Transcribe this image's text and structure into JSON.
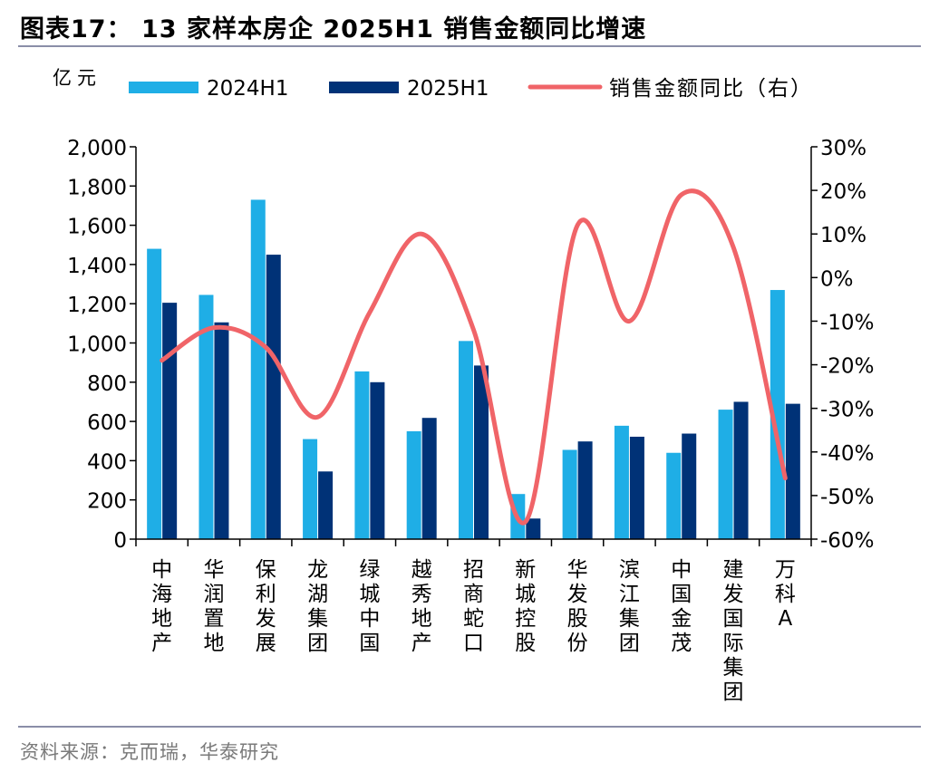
{
  "title": "图表17： 13 家样本房企 2025H1 销售金额同比增速",
  "source": "资料来源：克而瑞，华泰研究",
  "colors": {
    "series_2024": "#1faee6",
    "series_2025": "#003277",
    "line": "#f06468",
    "axis": "#000000",
    "rule": "#8a8ea8"
  },
  "chart_data": {
    "type": "bar",
    "ylabel": "亿元",
    "ylim": [
      0,
      2000
    ],
    "yticks": [
      "0",
      "200",
      "400",
      "600",
      "800",
      "1,000",
      "1,200",
      "1,400",
      "1,600",
      "1,800",
      "2,000"
    ],
    "y2lim": [
      -60,
      30
    ],
    "y2ticks": [
      "-60%",
      "-50%",
      "-40%",
      "-30%",
      "-20%",
      "-10%",
      "0%",
      "10%",
      "20%",
      "30%"
    ],
    "grid": false,
    "legend_position": "top",
    "categories": [
      "中海地产",
      "华润置地",
      "保利发展",
      "龙湖集团",
      "绿城中国",
      "越秀地产",
      "招商蛇口",
      "新城控股",
      "华发股份",
      "滨江集团",
      "中国金茂",
      "建发国际集团",
      "万科A"
    ],
    "series": [
      {
        "name": "2024H1",
        "type": "bar",
        "axis": "left",
        "values": [
          1480,
          1245,
          1730,
          510,
          855,
          550,
          1010,
          230,
          455,
          578,
          440,
          660,
          1270
        ]
      },
      {
        "name": "2025H1",
        "type": "bar",
        "axis": "left",
        "values": [
          1205,
          1105,
          1450,
          345,
          800,
          618,
          885,
          105,
          498,
          522,
          538,
          700,
          690
        ]
      },
      {
        "name": "销售金额同比（右）",
        "type": "line",
        "axis": "right",
        "values": [
          -19,
          -11.5,
          -16,
          -32,
          -8,
          10,
          -12,
          -56,
          12,
          -10,
          19,
          7,
          -46
        ]
      }
    ]
  }
}
